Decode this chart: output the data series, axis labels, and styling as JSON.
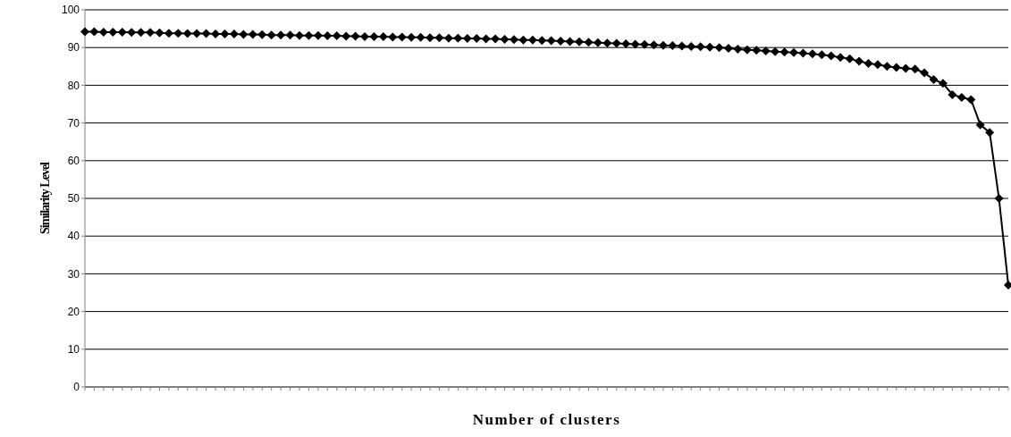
{
  "chart_data": {
    "type": "line",
    "xlabel": "Number of clusters",
    "ylabel": "Similarity Level",
    "categories": [
      null,
      null,
      null,
      null,
      null,
      null,
      null,
      null,
      null,
      null,
      null,
      null,
      null,
      null,
      null,
      null,
      null,
      null,
      null,
      null,
      null,
      null,
      null,
      null,
      null,
      null,
      null,
      null,
      null,
      null,
      null,
      null,
      null,
      null,
      null,
      null,
      null,
      null,
      null,
      null,
      null,
      null,
      null,
      null,
      null,
      null,
      null,
      null,
      null,
      null,
      null,
      null,
      null,
      null,
      null,
      null,
      null,
      null,
      null,
      null,
      null,
      null,
      null,
      null,
      null,
      null,
      null,
      null,
      null,
      null,
      null,
      null,
      null,
      null,
      null,
      null,
      null,
      null,
      null,
      null,
      null,
      null,
      null,
      null,
      null,
      null,
      null,
      null,
      null,
      null,
      null,
      null,
      null,
      null,
      null,
      null,
      null,
      null,
      null,
      null
    ],
    "series": [
      {
        "color": "#000000",
        "values": [
          94.2,
          94.2,
          94.1,
          94.1,
          94.1,
          94.0,
          94.0,
          94.0,
          93.9,
          93.8,
          93.8,
          93.7,
          93.7,
          93.7,
          93.6,
          93.6,
          93.6,
          93.5,
          93.5,
          93.4,
          93.3,
          93.3,
          93.3,
          93.2,
          93.2,
          93.2,
          93.1,
          93.1,
          93.0,
          93.0,
          92.9,
          92.9,
          92.9,
          92.8,
          92.8,
          92.7,
          92.7,
          92.6,
          92.6,
          92.5,
          92.5,
          92.4,
          92.4,
          92.3,
          92.3,
          92.2,
          92.1,
          92.0,
          92.0,
          91.9,
          91.8,
          91.7,
          91.6,
          91.5,
          91.4,
          91.3,
          91.2,
          91.1,
          91.0,
          90.9,
          90.8,
          90.7,
          90.6,
          90.5,
          90.4,
          90.3,
          90.2,
          90.1,
          90.0,
          89.8,
          89.6,
          89.4,
          89.3,
          89.1,
          88.9,
          88.8,
          88.7,
          88.5,
          88.3,
          88.1,
          87.8,
          87.4,
          87.0,
          86.4,
          85.8,
          85.5,
          85.0,
          84.7,
          84.5,
          84.3,
          83.3,
          81.5,
          80.5,
          77.5,
          76.8,
          76.2,
          69.5,
          67.5,
          50,
          27
        ]
      }
    ],
    "ylim": [
      0,
      100
    ],
    "yticks": [
      0,
      10,
      20,
      30,
      40,
      50,
      60,
      70,
      80,
      90,
      100
    ],
    "grid": "y",
    "marker": "diamond",
    "line_style": "solid",
    "legend": false
  }
}
